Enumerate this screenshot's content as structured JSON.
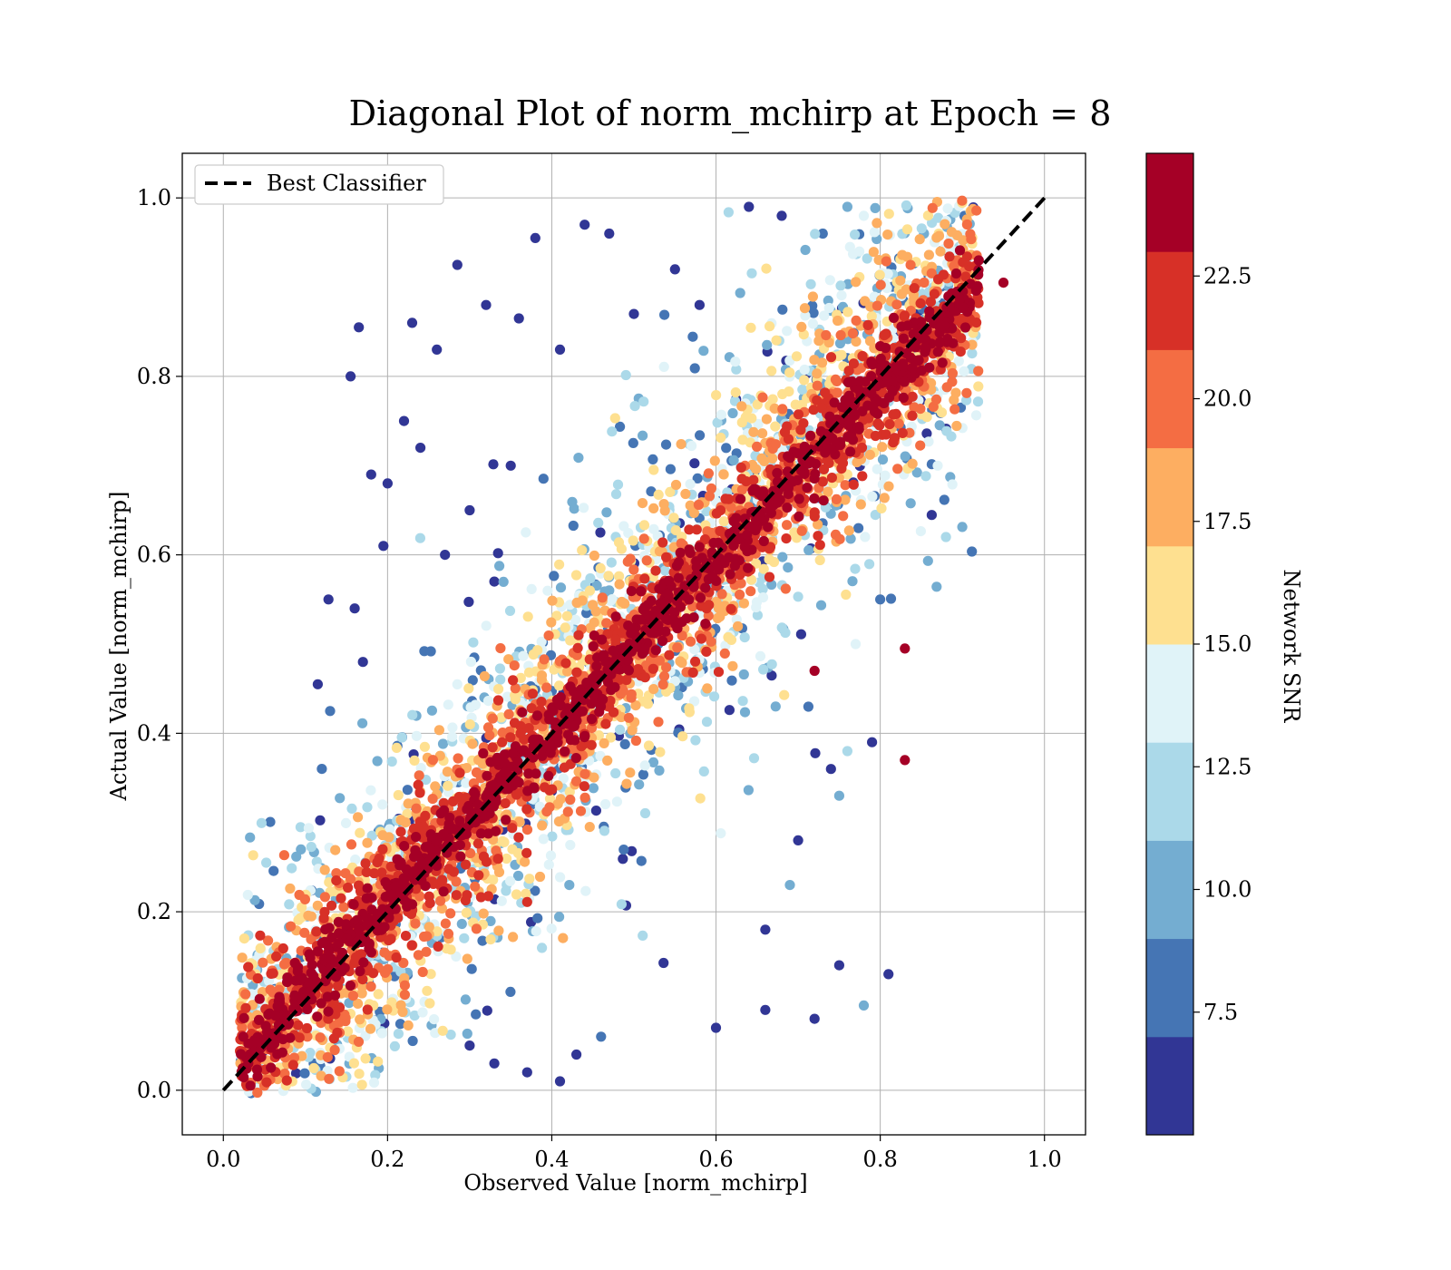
{
  "chart_data": {
    "type": "scatter",
    "title": "Diagonal Plot of norm_mchirp at Epoch = 8",
    "xlabel": "Observed Value [norm_mchirp]",
    "ylabel": "Actual Value [norm_mchirp]",
    "xlim": [
      -0.05,
      1.05
    ],
    "ylim": [
      -0.05,
      1.05
    ],
    "xticks": [
      0.0,
      0.2,
      0.4,
      0.6,
      0.8,
      1.0
    ],
    "yticks": [
      0.0,
      0.2,
      0.4,
      0.6,
      0.8,
      1.0
    ],
    "xtick_labels": [
      "0.0",
      "0.2",
      "0.4",
      "0.6",
      "0.8",
      "1.0"
    ],
    "ytick_labels": [
      "0.0",
      "0.2",
      "0.4",
      "0.6",
      "0.8",
      "1.0"
    ],
    "grid": true,
    "legend": {
      "placement": "upper-left",
      "entries": [
        "Best Classifier"
      ]
    },
    "reference_line": {
      "name": "Best Classifier",
      "x": [
        0.0,
        1.0
      ],
      "y": [
        0.0,
        1.0
      ],
      "style": "dashed",
      "color": "#000000"
    },
    "colorbar": {
      "label": "Network SNR",
      "range": [
        5.0,
        25.0
      ],
      "ticks": [
        7.5,
        10.0,
        12.5,
        15.0,
        17.5,
        20.0,
        22.5
      ],
      "tick_labels": [
        "7.5",
        "10.0",
        "12.5",
        "15.0",
        "17.5",
        "20.0",
        "22.5"
      ],
      "colors": [
        "#313695",
        "#4575b4",
        "#74add1",
        "#abd9e9",
        "#e0f3f8",
        "#fee090",
        "#fdae61",
        "#f46d43",
        "#d73027",
        "#a50026"
      ]
    },
    "points": [
      [
        0.165,
        0.855,
        6
      ],
      [
        0.155,
        0.8,
        6
      ],
      [
        0.23,
        0.86,
        6
      ],
      [
        0.285,
        0.925,
        6
      ],
      [
        0.44,
        0.97,
        6
      ],
      [
        0.47,
        0.96,
        6
      ],
      [
        0.38,
        0.955,
        6
      ],
      [
        0.26,
        0.83,
        6
      ],
      [
        0.32,
        0.88,
        6
      ],
      [
        0.36,
        0.865,
        6
      ],
      [
        0.18,
        0.69,
        6
      ],
      [
        0.22,
        0.75,
        6
      ],
      [
        0.24,
        0.72,
        6
      ],
      [
        0.2,
        0.68,
        6
      ],
      [
        0.195,
        0.61,
        6
      ],
      [
        0.16,
        0.54,
        6
      ],
      [
        0.17,
        0.48,
        6
      ],
      [
        0.128,
        0.55,
        6
      ],
      [
        0.115,
        0.455,
        6
      ],
      [
        0.13,
        0.425,
        8
      ],
      [
        0.35,
        0.7,
        6
      ],
      [
        0.3,
        0.65,
        6
      ],
      [
        0.27,
        0.6,
        6
      ],
      [
        0.33,
        0.57,
        6
      ],
      [
        0.41,
        0.83,
        6
      ],
      [
        0.5,
        0.87,
        6
      ],
      [
        0.55,
        0.92,
        6
      ],
      [
        0.58,
        0.88,
        6
      ],
      [
        0.64,
        0.99,
        6
      ],
      [
        0.68,
        0.98,
        6
      ],
      [
        0.73,
        0.96,
        8
      ],
      [
        0.76,
        0.99,
        10
      ],
      [
        0.78,
        0.98,
        13
      ],
      [
        0.6,
        0.07,
        6
      ],
      [
        0.66,
        0.09,
        6
      ],
      [
        0.72,
        0.08,
        6
      ],
      [
        0.75,
        0.14,
        6
      ],
      [
        0.81,
        0.13,
        6
      ],
      [
        0.78,
        0.095,
        10
      ],
      [
        0.66,
        0.18,
        6
      ],
      [
        0.7,
        0.28,
        6
      ],
      [
        0.74,
        0.36,
        6
      ],
      [
        0.79,
        0.39,
        6
      ],
      [
        0.69,
        0.23,
        10
      ],
      [
        0.75,
        0.33,
        10
      ],
      [
        0.83,
        0.495,
        24
      ],
      [
        0.83,
        0.37,
        24
      ],
      [
        0.72,
        0.47,
        24
      ],
      [
        0.8,
        0.55,
        8
      ],
      [
        0.77,
        0.5,
        13
      ],
      [
        0.76,
        0.38,
        11
      ],
      [
        0.88,
        0.62,
        11
      ],
      [
        0.87,
        0.7,
        13
      ],
      [
        0.86,
        0.77,
        15
      ],
      [
        0.9,
        0.88,
        18
      ],
      [
        0.92,
        0.93,
        24
      ],
      [
        0.95,
        0.905,
        24
      ],
      [
        0.41,
        0.01,
        6
      ],
      [
        0.37,
        0.02,
        6
      ],
      [
        0.43,
        0.04,
        6
      ],
      [
        0.46,
        0.06,
        8
      ],
      [
        0.33,
        0.03,
        6
      ],
      [
        0.3,
        0.05,
        6
      ],
      [
        0.05,
        0.005,
        20
      ],
      [
        0.03,
        0.04,
        18
      ],
      [
        0.07,
        0.02,
        14
      ],
      [
        0.09,
        0.06,
        10
      ],
      [
        0.11,
        0.03,
        8
      ]
    ],
    "dense_band": {
      "slope": 1.0,
      "offset": 0.0,
      "x_range": [
        0.02,
        0.92
      ],
      "note": "dense high-SNR points along diagonal, lower-SNR points spreading outward"
    }
  }
}
